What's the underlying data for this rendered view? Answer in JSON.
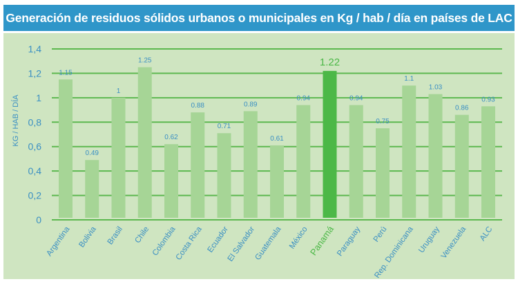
{
  "chart_data": {
    "type": "bar",
    "title": "Generación de residuos sólidos urbanos o municipales en Kg / hab / día en países de LAC",
    "xlabel": "",
    "ylabel": "KG / HAB / DÍA",
    "ylim": [
      0,
      1.4
    ],
    "yticks": [
      0,
      0.2,
      0.4,
      0.6,
      0.8,
      1,
      1.2,
      1.4
    ],
    "ytick_labels": [
      "0",
      "0,2",
      "0,4",
      "0,6",
      "0,8",
      "1",
      "1,2",
      "1,4"
    ],
    "grid": true,
    "categories": [
      "Argentina",
      "Bolivia",
      "Brasil",
      "Chile",
      "Colombia",
      "Costa Rica",
      "Ecuador",
      "El Salvador",
      "Guatemala",
      "México",
      "Panamá",
      "Paraguay",
      "Perú",
      "Rep. Dominicana",
      "Uruguay",
      "Venezuela",
      "ALC"
    ],
    "values": [
      1.15,
      0.49,
      1,
      1.25,
      0.62,
      0.88,
      0.71,
      0.89,
      0.61,
      0.94,
      1.22,
      0.94,
      0.75,
      1.1,
      1.03,
      0.86,
      0.93
    ],
    "value_labels": [
      "1.15",
      "0.49",
      "1",
      "1.25",
      "0.62",
      "0.88",
      "0.71",
      "0.89",
      "0.61",
      "0.94",
      "1.22",
      "0.94",
      "0.75",
      "1.1",
      "1.03",
      "0.86",
      "0.93"
    ],
    "highlight": "Panamá",
    "colors": {
      "bar": "#a6d596",
      "highlight": "#4cb847",
      "grid": "#5cb84f",
      "label": "#3a8fc3",
      "header": "#2f96c9",
      "background": "#cfe5c1"
    }
  }
}
